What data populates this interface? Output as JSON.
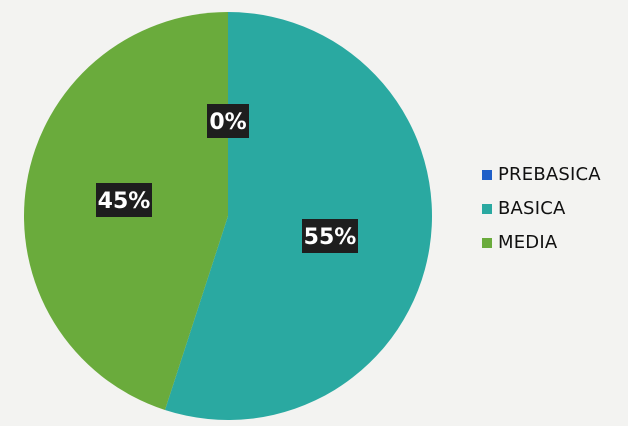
{
  "chart_data": {
    "type": "pie",
    "title": "",
    "slices": [
      {
        "label": "PREBASICA",
        "value": 0,
        "display": "0%",
        "color": "#1f5fc8"
      },
      {
        "label": "BASICA",
        "value": 55,
        "display": "55%",
        "color": "#2aa9a1"
      },
      {
        "label": "MEDIA",
        "value": 45,
        "display": "45%",
        "color": "#6aab3c"
      }
    ],
    "legend_position": "right",
    "label_style": {
      "background": "#1e1e1e",
      "color": "#ffffff"
    }
  },
  "legend": {
    "items": [
      {
        "label": "PREBASICA",
        "color": "#1f5fc8"
      },
      {
        "label": "BASICA",
        "color": "#2aa9a1"
      },
      {
        "label": "MEDIA",
        "color": "#6aab3c"
      }
    ]
  }
}
